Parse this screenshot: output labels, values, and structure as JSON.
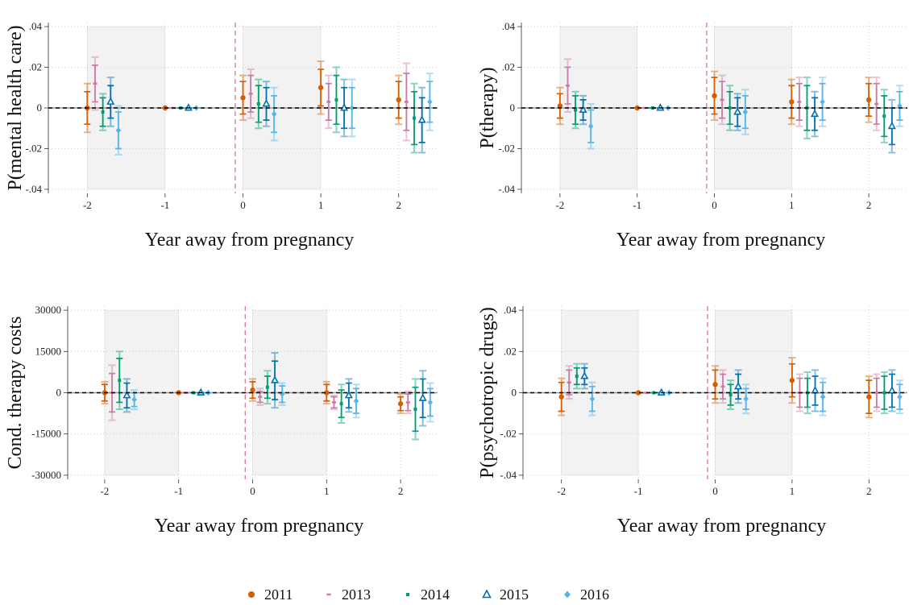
{
  "legend": [
    {
      "name": "2011",
      "color": "#d55e00",
      "marker": "circle"
    },
    {
      "name": "2013",
      "color": "#cc79a7",
      "marker": "dash"
    },
    {
      "name": "2014",
      "color": "#009e73",
      "marker": "square"
    },
    {
      "name": "2015",
      "color": "#0072b2",
      "marker": "triangle"
    },
    {
      "name": "2016",
      "color": "#56b4e9",
      "marker": "diamond"
    }
  ],
  "chart_data": [
    {
      "type": "errorbar",
      "ylabel": "P(mental health care)",
      "xlabel": "Year away from pregnancy",
      "xlim": [
        -2.5,
        2.5
      ],
      "ylim": [
        -0.042,
        0.042
      ],
      "xticks": [
        -2,
        -1,
        0,
        1,
        2
      ],
      "yticks": [
        {
          "value": 0.04,
          "label": ".04"
        },
        {
          "value": 0.02,
          "label": ".02"
        },
        0,
        {
          "value": -0.02,
          "label": "-.02"
        },
        {
          "value": -0.04,
          "label": "-.04"
        }
      ],
      "grid": true,
      "shade_x": [
        [
          -2,
          -1
        ],
        [
          0,
          1
        ]
      ],
      "vline": -0.1,
      "hline": 0,
      "series": [
        {
          "x": [
            -2,
            -1,
            0,
            1,
            2
          ],
          "values": [
            0,
            0,
            0.005,
            0.01,
            0.004
          ],
          "error": [
            0.012,
            0,
            0.011,
            0.013,
            0.012
          ],
          "error_inner": [
            0.008,
            0,
            0.008,
            0.009,
            0.009
          ]
        },
        {
          "x": [
            -1.9,
            -0.9,
            0.1,
            1.1,
            2.1
          ],
          "values": [
            0.012,
            0,
            0.007,
            0.003,
            0.003
          ],
          "error": [
            0.013,
            0,
            0.012,
            0.013,
            0.019
          ],
          "error_inner": [
            0.009,
            0,
            0.009,
            0.009,
            0.014
          ]
        },
        {
          "x": [
            -1.8,
            -0.8,
            0.2,
            1.2,
            2.2
          ],
          "values": [
            -0.002,
            0,
            0.002,
            0.004,
            -0.005
          ],
          "error": [
            0.009,
            0,
            0.012,
            0.016,
            0.017
          ],
          "error_inner": [
            0.007,
            0,
            0.009,
            0.012,
            0.013
          ]
        },
        {
          "x": [
            -1.7,
            -0.7,
            0.3,
            1.3,
            2.3
          ],
          "values": [
            0.003,
            0,
            0.002,
            0,
            -0.006
          ],
          "error": [
            0.012,
            0,
            0.011,
            0.014,
            0.016
          ],
          "error_inner": [
            0.008,
            0,
            0.008,
            0.01,
            0.011
          ]
        },
        {
          "x": [
            -1.6,
            -0.6,
            0.4,
            1.4,
            2.4
          ],
          "values": [
            -0.011,
            0,
            -0.003,
            0,
            0.003
          ],
          "error": [
            0.012,
            0,
            0.013,
            0.014,
            0.014
          ],
          "error_inner": [
            0.009,
            0,
            0.009,
            0.01,
            0.01
          ]
        }
      ]
    },
    {
      "type": "errorbar",
      "ylabel": "P(therapy)",
      "xlabel": "Year away from pregnancy",
      "xlim": [
        -2.5,
        2.5
      ],
      "ylim": [
        -0.042,
        0.042
      ],
      "xticks": [
        -2,
        -1,
        0,
        1,
        2
      ],
      "yticks": [
        {
          "value": 0.04,
          "label": ".04"
        },
        {
          "value": 0.02,
          "label": ".02"
        },
        0,
        {
          "value": -0.02,
          "label": "-.02"
        },
        {
          "value": -0.04,
          "label": "-.04"
        }
      ],
      "grid": true,
      "shade_x": [
        [
          -2,
          -1
        ],
        [
          0,
          1
        ]
      ],
      "vline": -0.1,
      "hline": 0,
      "series": [
        {
          "x": [
            -2,
            -1,
            0,
            1,
            2
          ],
          "values": [
            0.001,
            0,
            0.006,
            0.003,
            0.004
          ],
          "error": [
            0.009,
            0,
            0.012,
            0.011,
            0.011
          ],
          "error_inner": [
            0.006,
            0,
            0.009,
            0.008,
            0.008
          ]
        },
        {
          "x": [
            -1.9,
            -0.9,
            0.1,
            1.1,
            2.1
          ],
          "values": [
            0.011,
            0,
            0.004,
            0.003,
            0.002
          ],
          "error": [
            0.013,
            0,
            0.012,
            0.012,
            0.013
          ],
          "error_inner": [
            0.009,
            0,
            0.009,
            0.009,
            0.01
          ]
        },
        {
          "x": [
            -1.8,
            -0.8,
            0.2,
            1.2,
            2.2
          ],
          "values": [
            -0.001,
            0,
            0,
            0,
            -0.004
          ],
          "error": [
            0.009,
            0,
            0.011,
            0.015,
            0.013
          ],
          "error_inner": [
            0.007,
            0,
            0.008,
            0.011,
            0.01
          ]
        },
        {
          "x": [
            -1.7,
            -0.7,
            0.3,
            1.3,
            2.3
          ],
          "values": [
            -0.001,
            0,
            -0.002,
            -0.003,
            -0.009
          ],
          "error": [
            0.007,
            0,
            0.009,
            0.011,
            0.013
          ],
          "error_inner": [
            0.005,
            0,
            0.007,
            0.008,
            0.009
          ]
        },
        {
          "x": [
            -1.6,
            -0.6,
            0.4,
            1.4,
            2.4
          ],
          "values": [
            -0.009,
            0,
            -0.002,
            0.003,
            0.001
          ],
          "error": [
            0.011,
            0,
            0.011,
            0.012,
            0.01
          ],
          "error_inner": [
            0.008,
            0,
            0.008,
            0.009,
            0.007
          ]
        }
      ]
    },
    {
      "type": "errorbar",
      "ylabel": "Cond. therapy costs",
      "xlabel": "Year away from pregnancy",
      "xlim": [
        -2.5,
        2.5
      ],
      "ylim": [
        -31500,
        31500
      ],
      "xticks": [
        -2,
        -1,
        0,
        1,
        2
      ],
      "yticks": [
        30000,
        15000,
        0,
        -15000,
        -30000
      ],
      "grid": true,
      "shade_x": [
        [
          -2,
          -1
        ],
        [
          0,
          1
        ]
      ],
      "vline": -0.1,
      "hline": 0,
      "series": [
        {
          "x": [
            -2,
            -1,
            0,
            1,
            2
          ],
          "values": [
            0,
            0,
            1000,
            0,
            -4000
          ],
          "error": [
            4000,
            0,
            4000,
            4000,
            3500
          ],
          "error_inner": [
            3000,
            0,
            3000,
            3000,
            2500
          ]
        },
        {
          "x": [
            -1.9,
            -0.9,
            0.1,
            1.1,
            2.1
          ],
          "values": [
            0,
            0,
            -1500,
            -3500,
            -3500
          ],
          "error": [
            10000,
            0,
            3000,
            2500,
            4000
          ],
          "error_inner": [
            7000,
            0,
            2000,
            2000,
            3000
          ]
        },
        {
          "x": [
            -1.8,
            -0.8,
            0.2,
            1.2,
            2.2
          ],
          "values": [
            4500,
            0,
            2000,
            -4000,
            -6000
          ],
          "error": [
            10500,
            0,
            6000,
            7000,
            11000
          ],
          "error_inner": [
            8000,
            0,
            4000,
            5000,
            8000
          ]
        },
        {
          "x": [
            -1.7,
            -0.7,
            0.3,
            1.3,
            2.3
          ],
          "values": [
            -1000,
            0,
            4500,
            -1000,
            -2000
          ],
          "error": [
            6000,
            0,
            10000,
            6000,
            10000
          ],
          "error_inner": [
            4500,
            0,
            7000,
            4500,
            7000
          ]
        },
        {
          "x": [
            -1.6,
            -0.6,
            0.4,
            1.4,
            2.4
          ],
          "values": [
            -2500,
            0,
            -500,
            -3000,
            -3500
          ],
          "error": [
            3500,
            0,
            4000,
            6000,
            7000
          ],
          "error_inner": [
            2500,
            0,
            3000,
            4500,
            5000
          ]
        }
      ]
    },
    {
      "type": "errorbar",
      "ylabel": "P(psychotropic drugs)",
      "xlabel": "Year away from pregnancy",
      "xlim": [
        -2.5,
        2.5
      ],
      "ylim": [
        -0.042,
        0.042
      ],
      "xticks": [
        -2,
        -1,
        0,
        1,
        2
      ],
      "yticks": [
        {
          "value": 0.04,
          "label": ".04"
        },
        {
          "value": 0.02,
          "label": ".02"
        },
        0,
        {
          "value": -0.02,
          "label": "-.02"
        },
        {
          "value": -0.04,
          "label": "-.04"
        }
      ],
      "grid": true,
      "shade_x": [
        [
          -2,
          -1
        ],
        [
          0,
          1
        ]
      ],
      "vline": -0.1,
      "hline": 0,
      "series": [
        {
          "x": [
            -2,
            -1,
            0,
            1,
            2
          ],
          "values": [
            -0.002,
            0,
            0.004,
            0.006,
            -0.002
          ],
          "error": [
            0.009,
            0,
            0.009,
            0.011,
            0.01
          ],
          "error_inner": [
            0.007,
            0,
            0.007,
            0.008,
            0.008
          ]
        },
        {
          "x": [
            -1.9,
            -0.9,
            0.1,
            1.1,
            2.1
          ],
          "values": [
            0.005,
            0,
            0.003,
            0,
            0
          ],
          "error": [
            0.008,
            0,
            0.008,
            0.009,
            0.009
          ],
          "error_inner": [
            0.006,
            0,
            0.006,
            0.007,
            0.007
          ]
        },
        {
          "x": [
            -1.8,
            -0.8,
            0.2,
            1.2,
            2.2
          ],
          "values": [
            0.008,
            0,
            -0.001,
            0,
            0
          ],
          "error": [
            0.006,
            0,
            0.007,
            0.01,
            0.01
          ],
          "error_inner": [
            0.004,
            0,
            0.005,
            0.007,
            0.008
          ]
        },
        {
          "x": [
            -1.7,
            -0.7,
            0.3,
            1.3,
            2.3
          ],
          "values": [
            0.008,
            0,
            0.003,
            0.001,
            0.001
          ],
          "error": [
            0.006,
            0,
            0.008,
            0.01,
            0.01
          ],
          "error_inner": [
            0.004,
            0,
            0.006,
            0.007,
            0.008
          ]
        },
        {
          "x": [
            -1.6,
            -0.6,
            0.4,
            1.4,
            2.4
          ],
          "values": [
            -0.003,
            0,
            -0.003,
            -0.002,
            -0.002
          ],
          "error": [
            0.008,
            0,
            0.007,
            0.009,
            0.008
          ],
          "error_inner": [
            0.006,
            0,
            0.005,
            0.007,
            0.006
          ]
        }
      ]
    }
  ]
}
